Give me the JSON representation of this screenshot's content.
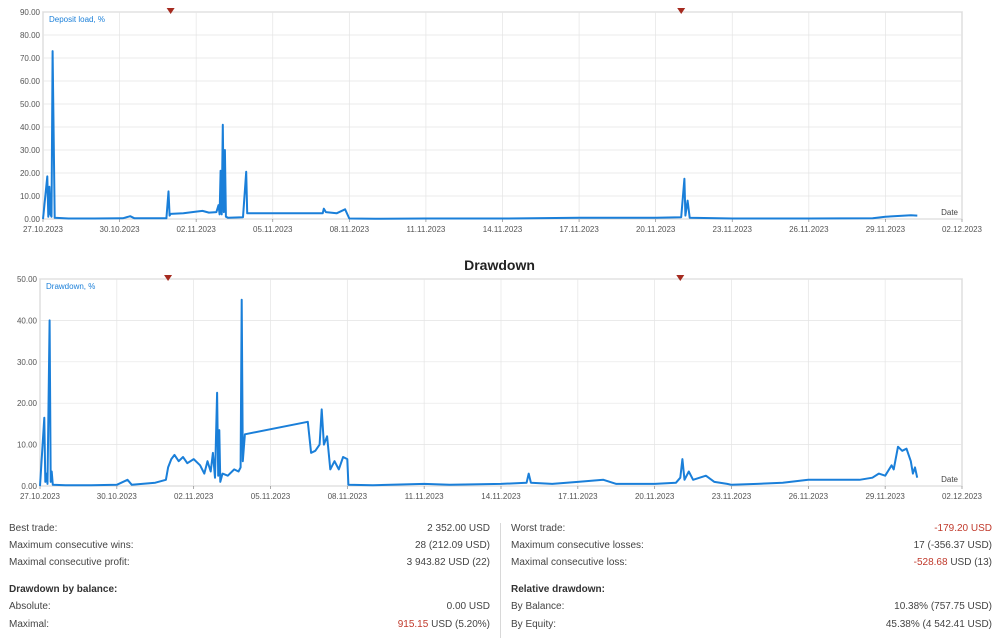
{
  "colors": {
    "line": "#1a7fd9",
    "axis": "#888888",
    "grid": "#e4e4e4",
    "marker": "#a52a1f",
    "negative": "#c0392b"
  },
  "chart_data": [
    {
      "type": "line",
      "title": "",
      "series_label": "Deposit load, %",
      "xlabel": "Date",
      "ylabel": "",
      "ylim": [
        0,
        90
      ],
      "xlim": [
        "27.10.2023",
        "02.12.2023"
      ],
      "y_ticks": [
        "0.00",
        "10.00",
        "20.00",
        "30.00",
        "40.00",
        "50.00",
        "60.00",
        "70.00",
        "80.00",
        "90.00"
      ],
      "x_ticks": [
        "27.10.2023",
        "30.10.2023",
        "02.11.2023",
        "05.11.2023",
        "08.11.2023",
        "11.11.2023",
        "14.11.2023",
        "17.11.2023",
        "20.11.2023",
        "23.11.2023",
        "26.11.2023",
        "29.11.2023",
        "02.12.2023"
      ],
      "markers_at": [
        "01.11.2023",
        "21.11.2023"
      ],
      "grid": true,
      "series": [
        {
          "name": "Deposit load, %",
          "points": [
            [
              "2023-10-27T00:00",
              0
            ],
            [
              "2023-10-27T04:00",
              18.5
            ],
            [
              "2023-10-27T05:00",
              1
            ],
            [
              "2023-10-27T06:00",
              14
            ],
            [
              "2023-10-27T07:00",
              2
            ],
            [
              "2023-10-27T08:00",
              1
            ],
            [
              "2023-10-27T09:00",
              73
            ],
            [
              "2023-10-27T11:00",
              0.5
            ],
            [
              "2023-10-28T00:00",
              0.2
            ],
            [
              "2023-10-29T00:00",
              0.2
            ],
            [
              "2023-10-30T03:00",
              0.3
            ],
            [
              "2023-10-30T10:00",
              1.2
            ],
            [
              "2023-10-30T14:00",
              0.3
            ],
            [
              "2023-10-31T00:00",
              0.3
            ],
            [
              "2023-10-31T20:00",
              0.3
            ],
            [
              "2023-10-31T22:00",
              12
            ],
            [
              "2023-10-31T23:00",
              1.5
            ],
            [
              "2023-11-01T00:00",
              2.2
            ],
            [
              "2023-11-01T12:00",
              2.5
            ],
            [
              "2023-11-02T00:00",
              3.2
            ],
            [
              "2023-11-02T06:00",
              3.5
            ],
            [
              "2023-11-02T12:00",
              2.8
            ],
            [
              "2023-11-02T19:00",
              3.0
            ],
            [
              "2023-11-02T21:00",
              6
            ],
            [
              "2023-11-02T22:00",
              2
            ],
            [
              "2023-11-02T23:00",
              21
            ],
            [
              "2023-11-03T00:00",
              2
            ],
            [
              "2023-11-03T01:00",
              41
            ],
            [
              "2023-11-03T02:00",
              3
            ],
            [
              "2023-11-03T03:00",
              30
            ],
            [
              "2023-11-03T04:00",
              1
            ],
            [
              "2023-11-03T06:00",
              0.5
            ],
            [
              "2023-11-03T20:00",
              0.8
            ],
            [
              "2023-11-03T23:00",
              20.5
            ],
            [
              "2023-11-04T00:00",
              2.5
            ],
            [
              "2023-11-05T00:00",
              2.5
            ],
            [
              "2023-11-06T00:00",
              2.5
            ],
            [
              "2023-11-06T23:00",
              2.5
            ],
            [
              "2023-11-07T00:00",
              4.5
            ],
            [
              "2023-11-07T02:00",
              3
            ],
            [
              "2023-11-07T12:00",
              2.5
            ],
            [
              "2023-11-07T20:00",
              4.2
            ],
            [
              "2023-11-08T00:00",
              0.2
            ],
            [
              "2023-11-09T00:00",
              0.1
            ],
            [
              "2023-11-11T00:00",
              0.2
            ],
            [
              "2023-11-14T00:00",
              0.2
            ],
            [
              "2023-11-17T00:00",
              0.5
            ],
            [
              "2023-11-20T00:00",
              0.5
            ],
            [
              "2023-11-21T00:00",
              0.8
            ],
            [
              "2023-11-21T03:00",
              17.5
            ],
            [
              "2023-11-21T04:00",
              1.5
            ],
            [
              "2023-11-21T06:00",
              8
            ],
            [
              "2023-11-21T08:00",
              0.5
            ],
            [
              "2023-11-23T00:00",
              0.2
            ],
            [
              "2023-11-26T00:00",
              0.2
            ],
            [
              "2023-11-28T12:00",
              0.3
            ],
            [
              "2023-11-29T00:00",
              1.0
            ],
            [
              "2023-11-30T00:00",
              1.6
            ],
            [
              "2023-11-30T06:00",
              1.5
            ]
          ]
        }
      ]
    },
    {
      "type": "line",
      "title": "Drawdown",
      "series_label": "Drawdown, %",
      "xlabel": "Date",
      "ylabel": "",
      "ylim": [
        0,
        50
      ],
      "xlim": [
        "27.10.2023",
        "02.12.2023"
      ],
      "y_ticks": [
        "0.00",
        "10.00",
        "20.00",
        "30.00",
        "40.00",
        "50.00"
      ],
      "x_ticks": [
        "27.10.2023",
        "30.10.2023",
        "02.11.2023",
        "05.11.2023",
        "08.11.2023",
        "11.11.2023",
        "14.11.2023",
        "17.11.2023",
        "20.11.2023",
        "23.11.2023",
        "26.11.2023",
        "29.11.2023",
        "02.12.2023"
      ],
      "markers_at": [
        "01.11.2023",
        "21.11.2023"
      ],
      "grid": true,
      "series": [
        {
          "name": "Drawdown, %",
          "points": [
            [
              "2023-10-27T00:00",
              0
            ],
            [
              "2023-10-27T04:00",
              16.5
            ],
            [
              "2023-10-27T05:00",
              1
            ],
            [
              "2023-10-27T06:00",
              3
            ],
            [
              "2023-10-27T07:00",
              0.5
            ],
            [
              "2023-10-27T09:00",
              40
            ],
            [
              "2023-10-27T10:00",
              1
            ],
            [
              "2023-10-27T11:00",
              3.5
            ],
            [
              "2023-10-27T12:00",
              0.3
            ],
            [
              "2023-10-28T00:00",
              0.2
            ],
            [
              "2023-10-29T00:00",
              0.2
            ],
            [
              "2023-10-30T00:00",
              0.3
            ],
            [
              "2023-10-30T10:00",
              1.5
            ],
            [
              "2023-10-30T14:00",
              0.3
            ],
            [
              "2023-10-31T12:00",
              0.8
            ],
            [
              "2023-10-31T22:00",
              1.5
            ],
            [
              "2023-11-01T00:00",
              4.5
            ],
            [
              "2023-11-01T03:00",
              6.5
            ],
            [
              "2023-11-01T06:00",
              7.5
            ],
            [
              "2023-11-01T10:00",
              6
            ],
            [
              "2023-11-01T14:00",
              7
            ],
            [
              "2023-11-01T18:00",
              5.5
            ],
            [
              "2023-11-02T00:00",
              6.5
            ],
            [
              "2023-11-02T06:00",
              5
            ],
            [
              "2023-11-02T10:00",
              3
            ],
            [
              "2023-11-02T13:00",
              6
            ],
            [
              "2023-11-02T16:00",
              3.5
            ],
            [
              "2023-11-02T18:00",
              8
            ],
            [
              "2023-11-02T20:00",
              2
            ],
            [
              "2023-11-02T22:00",
              22.5
            ],
            [
              "2023-11-02T23:00",
              2.5
            ],
            [
              "2023-11-03T00:00",
              13.5
            ],
            [
              "2023-11-03T01:00",
              1
            ],
            [
              "2023-11-03T03:00",
              3
            ],
            [
              "2023-11-03T08:00",
              2.5
            ],
            [
              "2023-11-03T14:00",
              4
            ],
            [
              "2023-11-03T18:00",
              3.5
            ],
            [
              "2023-11-03T20:00",
              4.5
            ],
            [
              "2023-11-03T21:00",
              45
            ],
            [
              "2023-11-03T22:00",
              6
            ],
            [
              "2023-11-04T00:00",
              12.5
            ],
            [
              "2023-11-06T11:00",
              15.5
            ],
            [
              "2023-11-06T14:00",
              8
            ],
            [
              "2023-11-06T18:00",
              8.5
            ],
            [
              "2023-11-06T22:00",
              10
            ],
            [
              "2023-11-07T00:00",
              18.5
            ],
            [
              "2023-11-07T02:00",
              10
            ],
            [
              "2023-11-07T05:00",
              12
            ],
            [
              "2023-11-07T08:00",
              4
            ],
            [
              "2023-11-07T12:00",
              6
            ],
            [
              "2023-11-07T16:00",
              4
            ],
            [
              "2023-11-07T20:00",
              7
            ],
            [
              "2023-11-08T00:00",
              6.5
            ],
            [
              "2023-11-08T01:00",
              0.3
            ],
            [
              "2023-11-09T00:00",
              0.2
            ],
            [
              "2023-11-11T00:00",
              0.5
            ],
            [
              "2023-11-12T00:00",
              0.3
            ],
            [
              "2023-11-14T00:00",
              0.5
            ],
            [
              "2023-11-15T00:00",
              0.8
            ],
            [
              "2023-11-15T02:00",
              3
            ],
            [
              "2023-11-15T04:00",
              0.8
            ],
            [
              "2023-11-16T00:00",
              0.5
            ],
            [
              "2023-11-17T00:00",
              1
            ],
            [
              "2023-11-18T00:00",
              1.5
            ],
            [
              "2023-11-18T12:00",
              0.5
            ],
            [
              "2023-11-19T00:00",
              0.5
            ],
            [
              "2023-11-20T00:00",
              0.5
            ],
            [
              "2023-11-20T20:00",
              0.8
            ],
            [
              "2023-11-21T00:00",
              2
            ],
            [
              "2023-11-21T02:00",
              6.5
            ],
            [
              "2023-11-21T04:00",
              1.5
            ],
            [
              "2023-11-21T08:00",
              3.5
            ],
            [
              "2023-11-21T12:00",
              1.5
            ],
            [
              "2023-11-22T00:00",
              2.5
            ],
            [
              "2023-11-22T08:00",
              1
            ],
            [
              "2023-11-22T20:00",
              0.5
            ],
            [
              "2023-11-23T00:00",
              0.3
            ],
            [
              "2023-11-24T00:00",
              0.5
            ],
            [
              "2023-11-25T00:00",
              0.8
            ],
            [
              "2023-11-26T00:00",
              1.5
            ],
            [
              "2023-11-27T00:00",
              1.5
            ],
            [
              "2023-11-28T00:00",
              1.5
            ],
            [
              "2023-11-28T12:00",
              2
            ],
            [
              "2023-11-28T18:00",
              3
            ],
            [
              "2023-11-29T00:00",
              2.5
            ],
            [
              "2023-11-29T06:00",
              5
            ],
            [
              "2023-11-29T08:00",
              4
            ],
            [
              "2023-11-29T12:00",
              9.5
            ],
            [
              "2023-11-29T16:00",
              8.5
            ],
            [
              "2023-11-29T20:00",
              9
            ],
            [
              "2023-11-30T00:00",
              6
            ],
            [
              "2023-11-30T02:00",
              3
            ],
            [
              "2023-11-30T04:00",
              4.5
            ],
            [
              "2023-11-30T06:00",
              2
            ]
          ]
        }
      ]
    }
  ],
  "stats": {
    "left": [
      {
        "label": "Best trade:",
        "value": "2 352.00 USD",
        "value_red": ""
      },
      {
        "label": "Maximum consecutive wins:",
        "value": "28 (212.09 USD)",
        "value_red": ""
      },
      {
        "label": "Maximal consecutive profit:",
        "value": "3 943.82 USD (22)",
        "value_red": ""
      },
      {
        "label": "Drawdown by balance:",
        "value": "",
        "value_red": "",
        "heading": true
      },
      {
        "label": "Absolute:",
        "value": "0.00 USD",
        "value_red": ""
      },
      {
        "label": "Maximal:",
        "value": "USD (5.20%)",
        "value_red": "915.15"
      }
    ],
    "right": [
      {
        "label": "Worst trade:",
        "value": "",
        "value_red": "-179.20 USD"
      },
      {
        "label": "Maximum consecutive losses:",
        "value": "17 (-356.37 USD)",
        "value_red": ""
      },
      {
        "label": "Maximal consecutive loss:",
        "value": "USD (13)",
        "value_red": "-528.68"
      },
      {
        "label": "Relative drawdown:",
        "value": "",
        "value_red": "",
        "heading": true
      },
      {
        "label": "By Balance:",
        "value": "10.38% (757.75 USD)",
        "value_red": ""
      },
      {
        "label": "By Equity:",
        "value": "45.38% (4 542.41 USD)",
        "value_red": ""
      }
    ]
  }
}
